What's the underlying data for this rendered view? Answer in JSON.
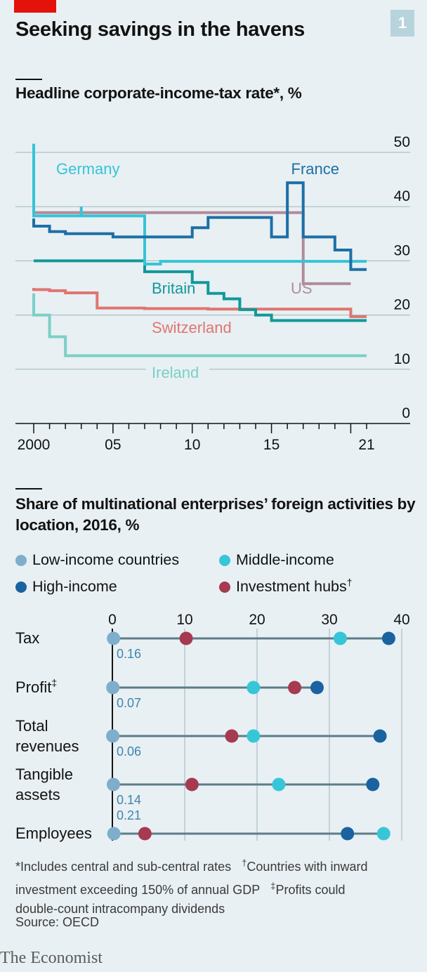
{
  "header": {
    "title": "Seeking savings in the havens",
    "chart_number": "1"
  },
  "footnotes": {
    "line1": "*Includes central and sub-central rates",
    "dagger_mark": "†",
    "dagger_text": "Countries with inward",
    "line2": "investment exceeding 150% of annual GDP",
    "ddagger_mark": "‡",
    "ddagger_text": "Profits could",
    "line3": "double-count intracompany dividends"
  },
  "source": "Source: OECD",
  "publisher": "The Economist",
  "colors": {
    "background": "#e8f0f3",
    "gridline": "#9fb5bd",
    "brand_red": "#e3120b",
    "germany": "#36c4d6",
    "france": "#1d6fa6",
    "britain": "#11989a",
    "us": "#b08c9a",
    "switzerland": "#e07570",
    "ireland": "#7ccfc6",
    "low_income": "#7eaecb",
    "middle_income": "#36c6d8",
    "high_income": "#1a63a0",
    "investment_hubs": "#a53a50",
    "dot_line": "#5c7c89"
  },
  "chart_data": [
    {
      "type": "line",
      "title": "Headline corporate-income-tax rate*, %",
      "xlim": [
        2000,
        2021
      ],
      "ylim": [
        0,
        50
      ],
      "x_ticks": [
        2000,
        2001,
        2002,
        2003,
        2004,
        2005,
        2006,
        2007,
        2008,
        2009,
        2010,
        2011,
        2012,
        2013,
        2014,
        2015,
        2016,
        2017,
        2018,
        2019,
        2020,
        2021
      ],
      "x_tick_labels": [
        {
          "x": 2000,
          "label": "2000"
        },
        {
          "x": 2005,
          "label": "05"
        },
        {
          "x": 2010,
          "label": "10"
        },
        {
          "x": 2015,
          "label": "15"
        },
        {
          "x": 2021,
          "label": "21"
        }
      ],
      "y_ticks": [
        0,
        10,
        20,
        30,
        40,
        50
      ],
      "grid": true,
      "step": true,
      "series": [
        {
          "name": "Ireland",
          "color_key": "ireland",
          "points": [
            [
              2000,
              24
            ],
            [
              2001,
              20
            ],
            [
              2002,
              16
            ],
            [
              2003,
              12.5
            ],
            [
              2021,
              12.5
            ]
          ]
        },
        {
          "name": "Switzerland",
          "color_key": "switzerland",
          "points": [
            [
              2000,
              25
            ],
            [
              2001,
              24.7
            ],
            [
              2002,
              24.5
            ],
            [
              2003,
              24.1
            ],
            [
              2004,
              24.1
            ],
            [
              2005,
              21.3
            ],
            [
              2006,
              21.3
            ],
            [
              2007,
              21.3
            ],
            [
              2008,
              21.2
            ],
            [
              2010,
              21.2
            ],
            [
              2011,
              21.2
            ],
            [
              2014,
              21.1
            ],
            [
              2019,
              21.1
            ],
            [
              2020,
              21.1
            ],
            [
              2021,
              19.7
            ]
          ]
        },
        {
          "name": "Britain",
          "color_key": "britain",
          "points": [
            [
              2000,
              30
            ],
            [
              2007,
              30
            ],
            [
              2008,
              28
            ],
            [
              2010,
              28
            ],
            [
              2011,
              26
            ],
            [
              2012,
              24
            ],
            [
              2013,
              23
            ],
            [
              2014,
              21
            ],
            [
              2015,
              20
            ],
            [
              2017,
              19
            ],
            [
              2021,
              19
            ]
          ]
        },
        {
          "name": "US",
          "color_key": "us",
          "points": [
            [
              2000,
              39.4
            ],
            [
              2017,
              38.9
            ],
            [
              2018,
              25.8
            ],
            [
              2020,
              25.8
            ]
          ]
        },
        {
          "name": "Germany",
          "color_key": "germany",
          "points": [
            [
              2000,
              51.6
            ],
            [
              2001,
              38.3
            ],
            [
              2003,
              38.3
            ],
            [
              2003,
              40
            ],
            [
              2004,
              38.3
            ],
            [
              2007,
              38.3
            ],
            [
              2008,
              29.4
            ],
            [
              2021,
              29.9
            ]
          ]
        },
        {
          "name": "France",
          "color_key": "france",
          "points": [
            [
              2000,
              37.8
            ],
            [
              2001,
              36.4
            ],
            [
              2002,
              35.4
            ],
            [
              2005,
              35
            ],
            [
              2006,
              34.4
            ],
            [
              2010,
              34.4
            ],
            [
              2011,
              36.1
            ],
            [
              2013,
              38
            ],
            [
              2015,
              38
            ],
            [
              2016,
              34.4
            ],
            [
              2017,
              44.4
            ],
            [
              2018,
              34.4
            ],
            [
              2019,
              34.4
            ],
            [
              2020,
              32
            ],
            [
              2021,
              28.4
            ]
          ]
        }
      ]
    },
    {
      "type": "scatter",
      "title": "Share of multinational enterprises’ foreign activities by location, 2016, %",
      "xlim": [
        0,
        40
      ],
      "x_ticks": [
        0,
        10,
        20,
        30,
        40
      ],
      "categories": [
        {
          "label": "Tax",
          "low_income_label": "0.16"
        },
        {
          "label": "Profit",
          "label_mark": "‡",
          "low_income_label": "0.07"
        },
        {
          "label": "Total revenues",
          "label_lines": [
            "Total",
            "revenues"
          ],
          "low_income_label": "0.06"
        },
        {
          "label": "Tangible assets",
          "label_lines": [
            "Tangible",
            "assets"
          ],
          "low_income_label": "0.14"
        },
        {
          "label": "Employees",
          "low_income_label": "0.21"
        }
      ],
      "legend": [
        {
          "name": "Low-income countries",
          "color_key": "low_income"
        },
        {
          "name": "Middle-income",
          "color_key": "middle_income"
        },
        {
          "name": "High-income",
          "color_key": "high_income"
        },
        {
          "name": "Investment hubs",
          "mark": "†",
          "color_key": "investment_hubs"
        }
      ],
      "series": [
        {
          "name": "Low-income countries",
          "color_key": "low_income",
          "values": [
            0.16,
            0.07,
            0.06,
            0.14,
            0.21
          ]
        },
        {
          "name": "Middle-income",
          "color_key": "middle_income",
          "values": [
            31.5,
            19.5,
            19.5,
            23,
            37.5
          ]
        },
        {
          "name": "High-income",
          "color_key": "high_income",
          "values": [
            38.2,
            28.3,
            37,
            36,
            32.5
          ]
        },
        {
          "name": "Investment hubs",
          "color_key": "investment_hubs",
          "values": [
            10.2,
            25.2,
            16.5,
            11,
            4.5
          ]
        }
      ]
    }
  ]
}
